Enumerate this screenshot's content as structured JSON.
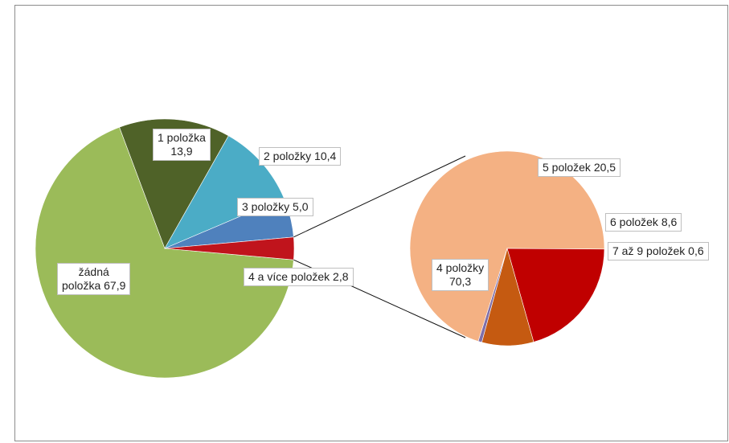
{
  "chart_data": [
    {
      "type": "pie",
      "series": [
        {
          "label": "žádná položka",
          "value": 67.9,
          "color": "#9bbb59"
        },
        {
          "label": "1 položka",
          "value": 13.9,
          "color": "#4f6228"
        },
        {
          "label": "2 položky",
          "value": 10.4,
          "color": "#4bacc6"
        },
        {
          "label": "3 položky",
          "value": 5.0,
          "color": "#4f81bd"
        },
        {
          "label": "4 a více položek",
          "value": 2.8,
          "color": "#c0141c"
        }
      ]
    },
    {
      "type": "pie",
      "series": [
        {
          "label": "4 položky",
          "value": 70.3,
          "color": "#f4b183"
        },
        {
          "label": "5 položek",
          "value": 20.5,
          "color": "#c00000"
        },
        {
          "label": "6 položek",
          "value": 8.6,
          "color": "#c55a11"
        },
        {
          "label": "7 až 9 položek",
          "value": 0.6,
          "color": "#7f6ea8"
        }
      ]
    }
  ],
  "labels": {
    "zadna": "žádná\npoložka 67,9",
    "p1": "1 položka\n13,9",
    "p2": "2 položky 10,4",
    "p3": "3 položky 5,0",
    "p4v": "4 a více položek 2,8",
    "s4": "4 položky\n70,3",
    "s5": "5 položek 20,5",
    "s6": "6 položek 8,6",
    "s79": "7 až 9 položek 0,6"
  }
}
